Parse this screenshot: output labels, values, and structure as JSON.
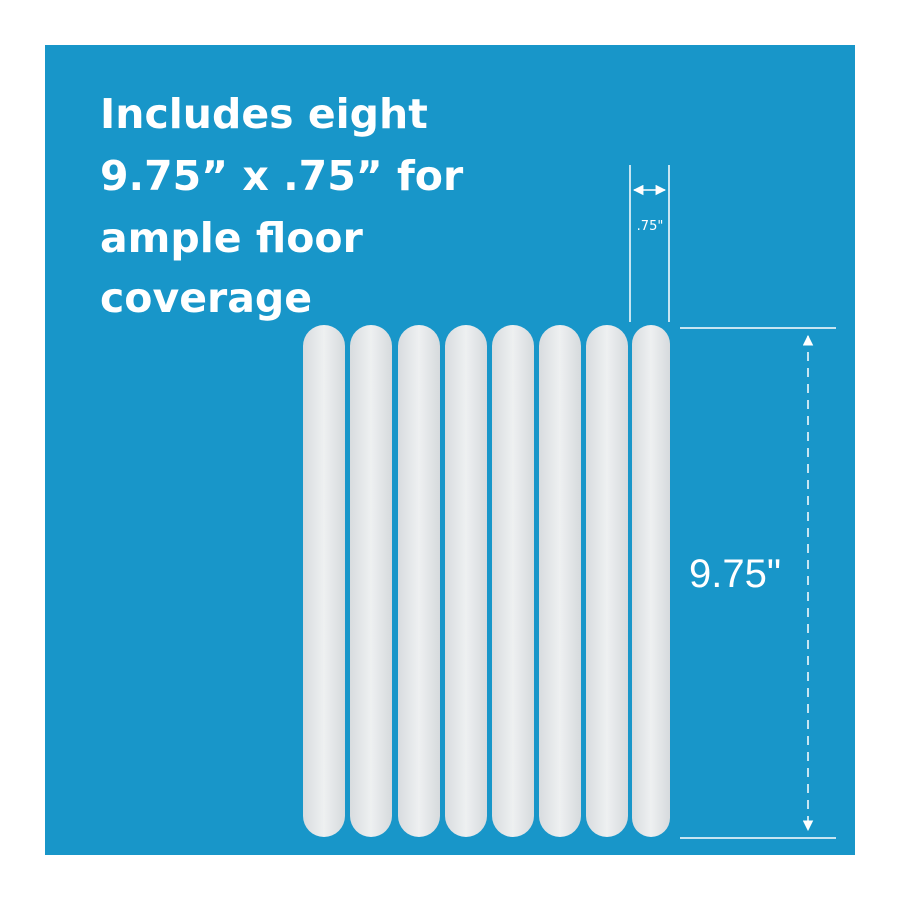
{
  "headline": {
    "lines": [
      "Includes eight",
      "9.75” x .75” for",
      "ample floor",
      "coverage"
    ]
  },
  "dimensions": {
    "width_label": ".75\"",
    "height_label": "9.75\""
  }
}
